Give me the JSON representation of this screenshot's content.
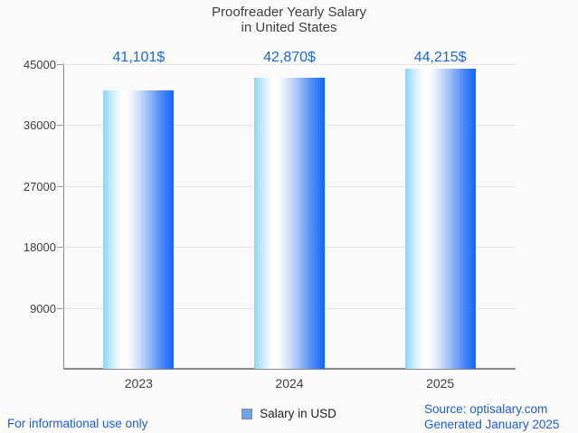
{
  "title": {
    "line1": "Proofreader Yearly Salary",
    "line2": "in United States"
  },
  "legend": {
    "label": "Salary in USD"
  },
  "footer": {
    "left": "For informational use only",
    "source": "Source: optisalary.com",
    "generated": "Generated January 2025"
  },
  "colors": {
    "accent_blue_text": "#1b67e0",
    "footer_link_blue": "#1a5ce8",
    "bar_gradient_left": "#8ad6fb",
    "bar_gradient_middle": "#ffffff",
    "bar_gradient_right": "#0f66fd",
    "legend_swatch": "#6fa3ef",
    "axis_line": "#8a8a8a",
    "gridline": "#e5e5e3",
    "title_text": "#3d4043",
    "background": "#fbfbf9"
  },
  "chart_data": {
    "type": "bar",
    "title": "Proofreader Yearly Salary in United States",
    "xlabel": "",
    "ylabel": "",
    "categories": [
      "2023",
      "2024",
      "2025"
    ],
    "series": [
      {
        "name": "Salary in USD",
        "values": [
          41101,
          42870,
          44215
        ]
      }
    ],
    "value_labels": [
      "41,101$",
      "42,870$",
      "44,215$"
    ],
    "ylim": [
      0,
      45000
    ],
    "yticks": [
      9000,
      18000,
      27000,
      36000,
      45000
    ],
    "grid": true,
    "legend_position": "bottom"
  }
}
